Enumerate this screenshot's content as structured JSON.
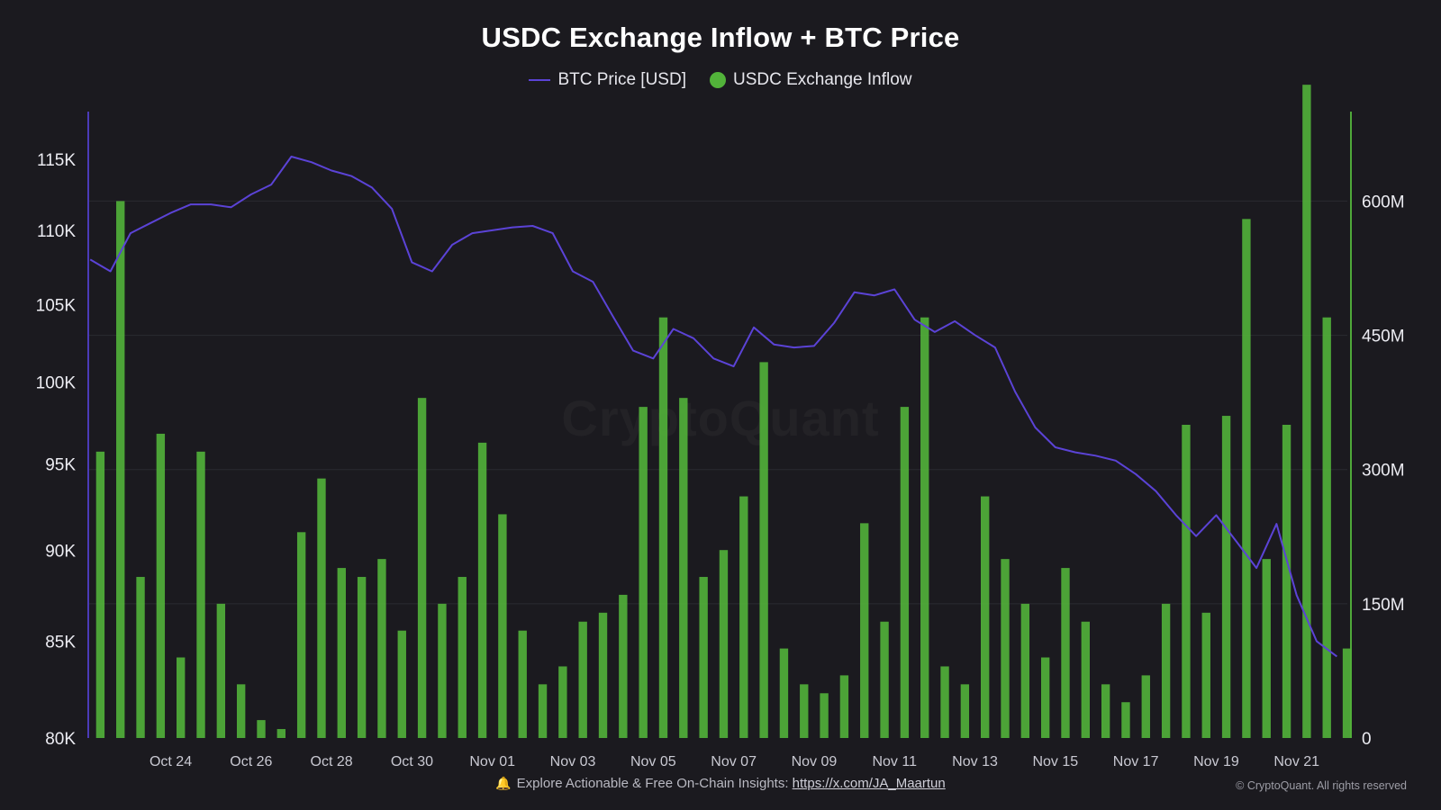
{
  "colors": {
    "background": "#1b1a1f",
    "btc_line": "#5b43d6",
    "inflow_bar": "#52b33a",
    "left_axis": "#4b3bb8",
    "right_axis": "#4fa83a",
    "grid": "#2b2a30"
  },
  "watermark": "CryptoQuant",
  "footer": {
    "icon": "bell-icon",
    "text": "Explore Actionable & Free On-Chain Insights: ",
    "link_text": "https://x.com/JA_Maartun",
    "copyright": "© CryptoQuant. All rights reserved"
  },
  "chart_data": {
    "type": "line",
    "title": "USDC Exchange Inflow + BTC Price",
    "legend_position": "top-center",
    "grid": true,
    "x_range": [
      "2025-10-22",
      "2025-11-22"
    ],
    "x_tick_labels": [
      "Oct 24",
      "Oct 26",
      "Oct 28",
      "Oct 30",
      "Nov 01",
      "Nov 03",
      "Nov 05",
      "Nov 07",
      "Nov 09",
      "Nov 11",
      "Nov 13",
      "Nov 15",
      "Nov 17",
      "Nov 19",
      "Nov 21"
    ],
    "x_tick_dates": [
      "2025-10-24",
      "2025-10-26",
      "2025-10-28",
      "2025-10-30",
      "2025-11-01",
      "2025-11-03",
      "2025-11-05",
      "2025-11-07",
      "2025-11-09",
      "2025-11-11",
      "2025-11-13",
      "2025-11-15",
      "2025-11-17",
      "2025-11-19",
      "2025-11-21"
    ],
    "y_left": {
      "ticks": [
        80000,
        85000,
        90000,
        95000,
        100000,
        105000,
        110000,
        115000
      ],
      "tick_labels": [
        "80K",
        "85K",
        "90K",
        "95K",
        "100K",
        "105K",
        "110K",
        "115K"
      ],
      "scale": "log"
    },
    "y_right": {
      "range": [
        0,
        700000000
      ],
      "ticks": [
        0,
        150000000,
        300000000,
        450000000,
        600000000
      ],
      "tick_labels": [
        "0",
        "150M",
        "300M",
        "450M",
        "600M"
      ]
    },
    "series": [
      {
        "name": "BTC Price [USD]",
        "type": "line",
        "axis": "left",
        "x": [
          "2025-10-22T00",
          "2025-10-22T12",
          "2025-10-23T00",
          "2025-10-23T12",
          "2025-10-24T00",
          "2025-10-24T12",
          "2025-10-25T00",
          "2025-10-25T12",
          "2025-10-26T00",
          "2025-10-26T12",
          "2025-10-27T00",
          "2025-10-27T12",
          "2025-10-28T00",
          "2025-10-28T12",
          "2025-10-29T00",
          "2025-10-29T12",
          "2025-10-30T00",
          "2025-10-30T12",
          "2025-10-31T00",
          "2025-10-31T12",
          "2025-11-01T00",
          "2025-11-01T12",
          "2025-11-02T00",
          "2025-11-02T12",
          "2025-11-03T00",
          "2025-11-03T12",
          "2025-11-04T00",
          "2025-11-04T12",
          "2025-11-05T00",
          "2025-11-05T12",
          "2025-11-06T00",
          "2025-11-06T12",
          "2025-11-07T00",
          "2025-11-07T12",
          "2025-11-08T00",
          "2025-11-08T12",
          "2025-11-09T00",
          "2025-11-09T12",
          "2025-11-10T00",
          "2025-11-10T12",
          "2025-11-11T00",
          "2025-11-11T12",
          "2025-11-12T00",
          "2025-11-12T12",
          "2025-11-13T00",
          "2025-11-13T12",
          "2025-11-14T00",
          "2025-11-14T12",
          "2025-11-15T00",
          "2025-11-15T12",
          "2025-11-16T00",
          "2025-11-16T12",
          "2025-11-17T00",
          "2025-11-17T12",
          "2025-11-18T00",
          "2025-11-18T12",
          "2025-11-19T00",
          "2025-11-19T12",
          "2025-11-20T00",
          "2025-11-20T12",
          "2025-11-21T00",
          "2025-11-21T12",
          "2025-11-22T00"
        ],
        "values": [
          108000,
          107200,
          109800,
          110500,
          111200,
          111800,
          111800,
          111600,
          112500,
          113200,
          115200,
          114800,
          114200,
          113800,
          113000,
          111500,
          107800,
          107200,
          109000,
          109800,
          110000,
          110200,
          110300,
          109800,
          107200,
          106500,
          104200,
          102000,
          101500,
          103400,
          102800,
          101500,
          101000,
          103500,
          102400,
          102200,
          102300,
          103800,
          105800,
          105600,
          106000,
          104000,
          103200,
          103900,
          103000,
          102200,
          99400,
          97200,
          96000,
          95700,
          95500,
          95200,
          94400,
          93400,
          92000,
          90800,
          92000,
          90500,
          89000,
          91500,
          87500,
          85000,
          84200
        ]
      },
      {
        "name": "USDC Exchange Inflow",
        "type": "bar",
        "axis": "right",
        "x": [
          "2025-10-22T06",
          "2025-10-22T18",
          "2025-10-23T06",
          "2025-10-23T18",
          "2025-10-24T06",
          "2025-10-24T18",
          "2025-10-25T06",
          "2025-10-25T18",
          "2025-10-26T06",
          "2025-10-26T18",
          "2025-10-27T06",
          "2025-10-27T18",
          "2025-10-28T06",
          "2025-10-28T18",
          "2025-10-29T06",
          "2025-10-29T18",
          "2025-10-30T06",
          "2025-10-30T18",
          "2025-10-31T06",
          "2025-10-31T18",
          "2025-11-01T06",
          "2025-11-01T18",
          "2025-11-02T06",
          "2025-11-02T18",
          "2025-11-03T06",
          "2025-11-03T18",
          "2025-11-04T06",
          "2025-11-04T18",
          "2025-11-05T06",
          "2025-11-05T18",
          "2025-11-06T06",
          "2025-11-06T18",
          "2025-11-07T06",
          "2025-11-07T18",
          "2025-11-08T06",
          "2025-11-08T18",
          "2025-11-09T06",
          "2025-11-09T18",
          "2025-11-10T06",
          "2025-11-10T18",
          "2025-11-11T06",
          "2025-11-11T18",
          "2025-11-12T06",
          "2025-11-12T18",
          "2025-11-13T06",
          "2025-11-13T18",
          "2025-11-14T06",
          "2025-11-14T18",
          "2025-11-15T06",
          "2025-11-15T18",
          "2025-11-16T06",
          "2025-11-16T18",
          "2025-11-17T06",
          "2025-11-17T18",
          "2025-11-18T06",
          "2025-11-18T18",
          "2025-11-19T06",
          "2025-11-19T18",
          "2025-11-20T06",
          "2025-11-20T18",
          "2025-11-21T06",
          "2025-11-21T18",
          "2025-11-22T06"
        ],
        "values": [
          320000000,
          600000000,
          180000000,
          340000000,
          90000000,
          320000000,
          150000000,
          60000000,
          20000000,
          10000000,
          230000000,
          290000000,
          190000000,
          180000000,
          200000000,
          120000000,
          380000000,
          150000000,
          180000000,
          330000000,
          250000000,
          120000000,
          60000000,
          80000000,
          130000000,
          140000000,
          160000000,
          370000000,
          470000000,
          380000000,
          180000000,
          210000000,
          270000000,
          420000000,
          100000000,
          60000000,
          50000000,
          70000000,
          240000000,
          130000000,
          370000000,
          470000000,
          80000000,
          60000000,
          270000000,
          200000000,
          150000000,
          90000000,
          190000000,
          130000000,
          60000000,
          40000000,
          70000000,
          150000000,
          350000000,
          140000000,
          360000000,
          580000000,
          200000000,
          350000000,
          730000000,
          470000000,
          100000000
        ]
      }
    ]
  }
}
